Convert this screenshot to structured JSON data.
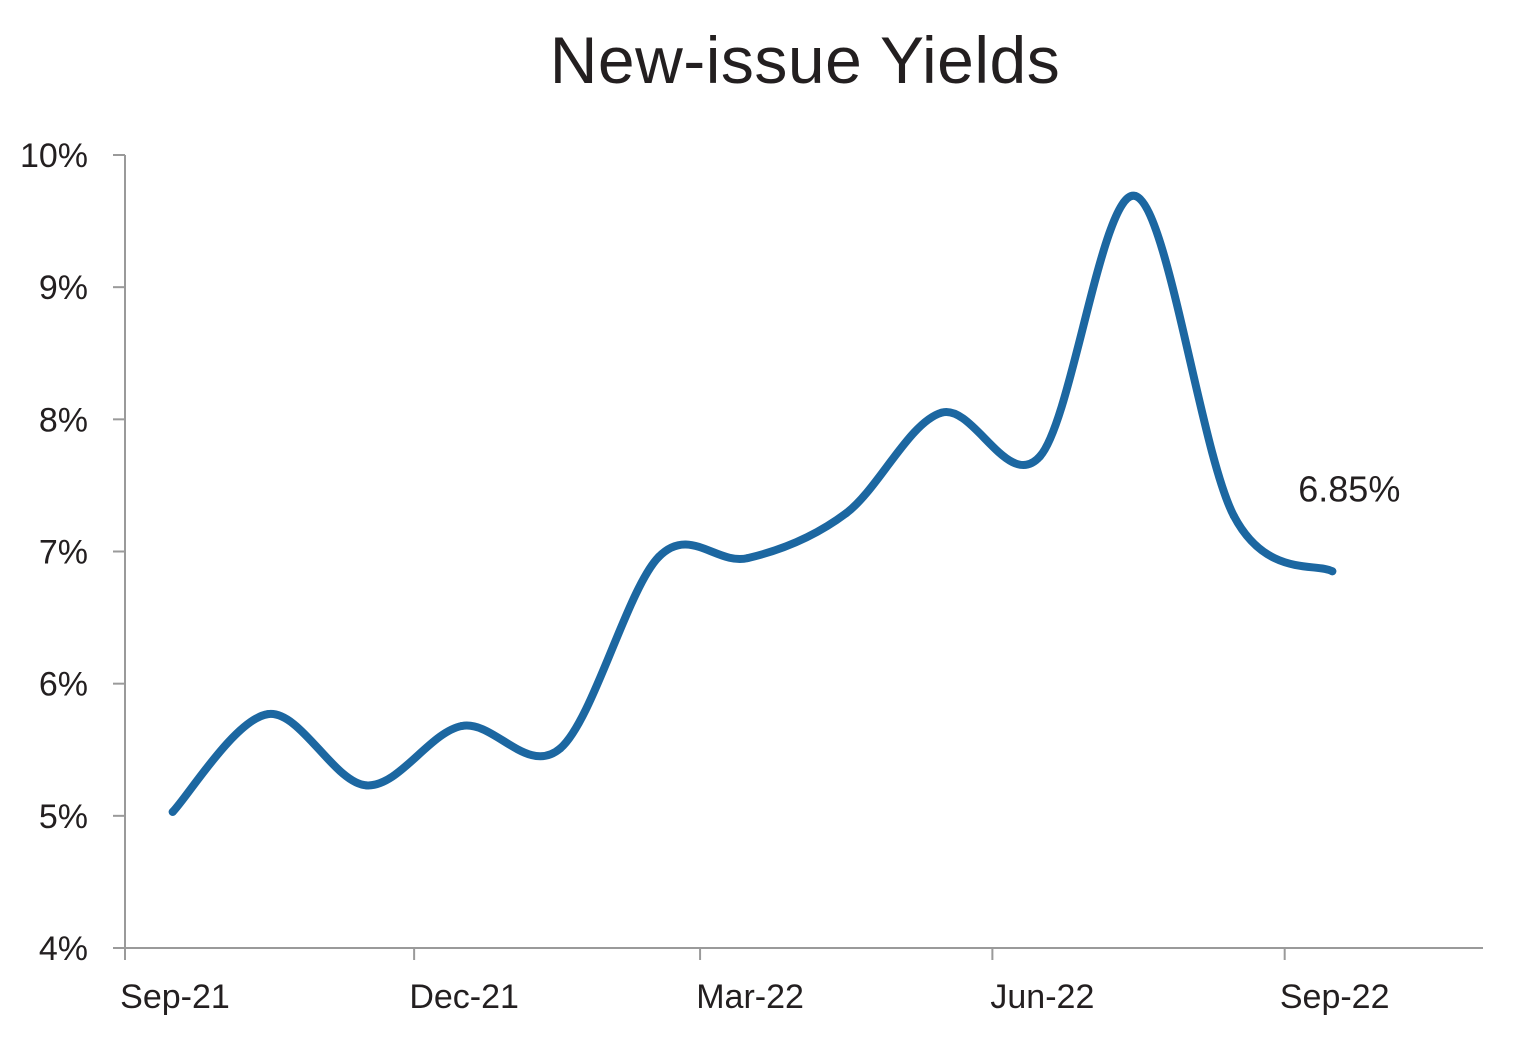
{
  "chart_data": {
    "type": "line",
    "title": "New-issue Yields",
    "xlabel": "",
    "ylabel": "",
    "ylim": [
      4,
      10
    ],
    "xlim": [
      "2021-08-31",
      "2022-09-30"
    ],
    "y_ticks": [
      {
        "value": 4,
        "label": "4%"
      },
      {
        "value": 5,
        "label": "5%"
      },
      {
        "value": 6,
        "label": "6%"
      },
      {
        "value": 7,
        "label": "7%"
      },
      {
        "value": 8,
        "label": "8%"
      },
      {
        "value": 9,
        "label": "9%"
      },
      {
        "value": 10,
        "label": "10%"
      }
    ],
    "x_ticks": [
      {
        "value": "2021-08-31",
        "label": "Sep-21"
      },
      {
        "value": "2021-11-30",
        "label": "Dec-21"
      },
      {
        "value": "2022-02-28",
        "label": "Mar-22"
      },
      {
        "value": "2022-05-31",
        "label": "Jun-22"
      },
      {
        "value": "2022-08-31",
        "label": "Sep-22"
      }
    ],
    "grid": false,
    "series": [
      {
        "color": "#1c67a1",
        "x": [
          "2021-09-15",
          "2021-10-15",
          "2021-11-15",
          "2021-12-15",
          "2022-01-15",
          "2022-02-15",
          "2022-03-15",
          "2022-04-15",
          "2022-05-15",
          "2022-06-15",
          "2022-07-15",
          "2022-08-15",
          "2022-09-15"
        ],
        "values": [
          5.03,
          5.77,
          5.23,
          5.68,
          5.51,
          6.96,
          6.95,
          7.29,
          8.05,
          7.72,
          9.69,
          7.27,
          6.85
        ]
      }
    ],
    "annotations": [
      {
        "text": "6.85%",
        "series": 0,
        "point": 12
      }
    ]
  }
}
